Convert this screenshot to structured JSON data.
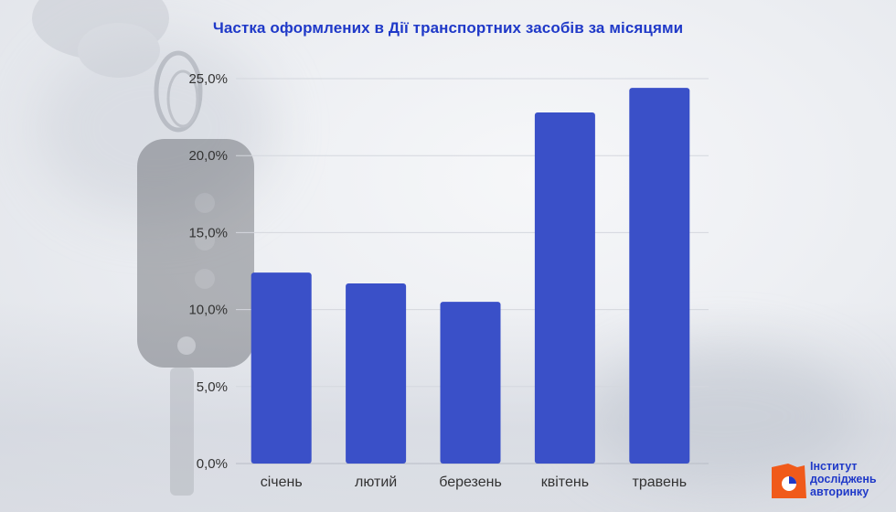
{
  "chart_data": {
    "type": "bar",
    "title": "Частка оформлених в Дії транспортних засобів за місяцями",
    "categories": [
      "січень",
      "лютий",
      "березень",
      "квітень",
      "травень"
    ],
    "values": [
      12.4,
      11.7,
      10.5,
      22.8,
      24.4
    ],
    "ylim": [
      0,
      25
    ],
    "yticks": [
      "0,0%",
      "5,0%",
      "10,0%",
      "15,0%",
      "20,0%",
      "25,0%"
    ],
    "grid": true,
    "bar_color": "#3a50c8"
  },
  "logo": {
    "line1": "Інститут",
    "line2": "досліджень",
    "line3": "авторинку",
    "accent_color": "#f05a1a"
  }
}
